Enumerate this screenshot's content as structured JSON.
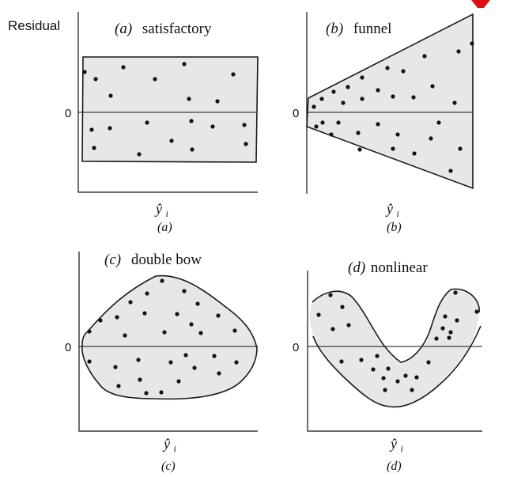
{
  "ylabel": "Residual",
  "panels": [
    {
      "key": "a",
      "title_letter": "(a)",
      "title_text": "satisfactory",
      "zero": "0",
      "xlabel": "ŷ",
      "xlabel_sub": "i",
      "caption": "(a)"
    },
    {
      "key": "b",
      "title_letter": "(b)",
      "title_text": "funnel",
      "zero": "0",
      "xlabel": "ŷ",
      "xlabel_sub": "i",
      "caption": "(b)"
    },
    {
      "key": "c",
      "title_letter": "(c)",
      "title_text": "double bow",
      "zero": "0",
      "xlabel": "ŷ",
      "xlabel_sub": "i",
      "caption": "(c)"
    },
    {
      "key": "d",
      "title_letter": "(d)",
      "title_text": "nonlinear",
      "zero": "0",
      "xlabel": "ŷ",
      "xlabel_sub": "i",
      "caption": "(d)"
    }
  ],
  "colors": {
    "band_fill": "#e7e7e7",
    "ink": "#111111",
    "corner_mark": "#e01010"
  }
}
